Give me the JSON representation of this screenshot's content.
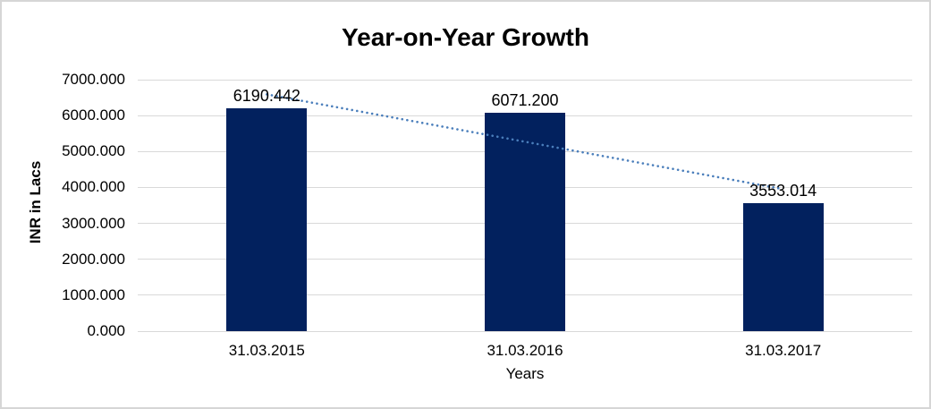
{
  "title": "Year-on-Year Growth",
  "colors": {
    "bar": "#02215e",
    "trendline": "#4a7ebb",
    "gridline": "#d9d9d9",
    "frame_border": "#d6d6d6",
    "text": "#000000",
    "background": "#ffffff"
  },
  "chart_data": {
    "type": "bar",
    "title": "Year-on-Year Growth",
    "categories": [
      "31.03.2015",
      "31.03.2016",
      "31.03.2017"
    ],
    "values": [
      6190.442,
      6071.2,
      3553.014
    ],
    "data_labels": [
      "6190.442",
      "6071.200",
      "3553.014"
    ],
    "xlabel": "Years",
    "ylabel": "INR in Lacs",
    "ylim": [
      0,
      7000
    ],
    "ytick_step": 1000,
    "ytick_labels": [
      "0.000",
      "1000.000",
      "2000.000",
      "3000.000",
      "4000.000",
      "5000.000",
      "6000.000",
      "7000.000"
    ],
    "grid": true,
    "legend": false,
    "trendline": {
      "type": "linear",
      "style": "dotted"
    }
  }
}
